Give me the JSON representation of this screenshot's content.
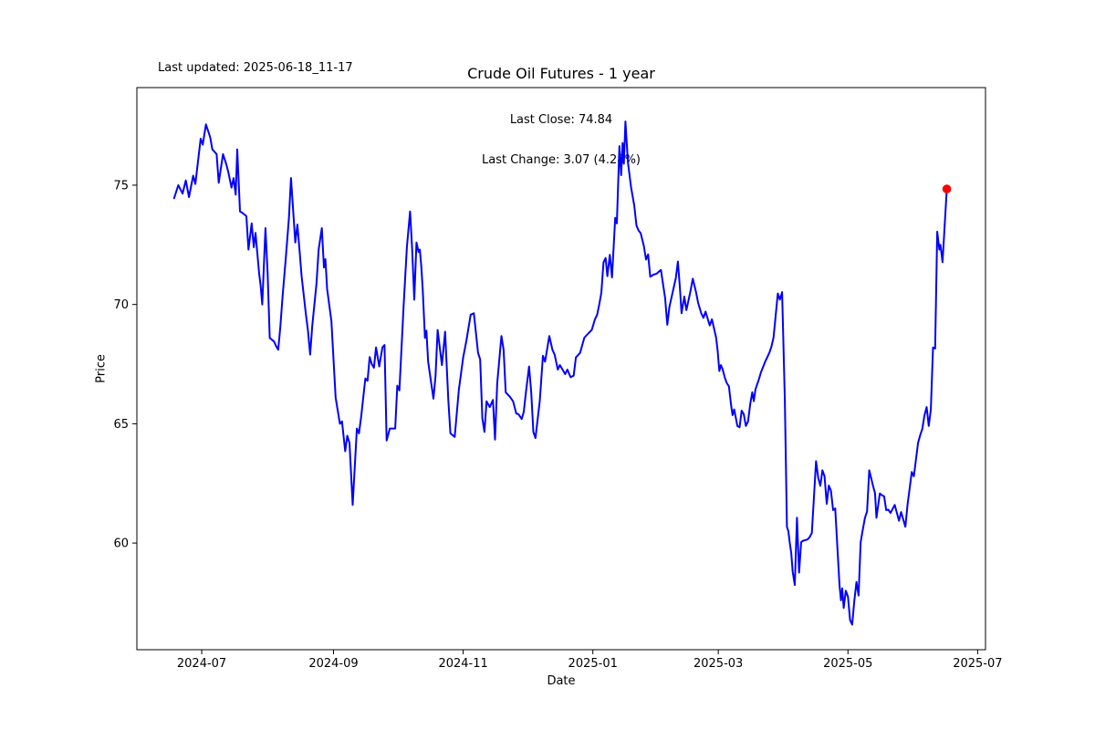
{
  "figure": {
    "title": "Crude Oil Futures - 1 year",
    "last_updated_text": "Last updated: 2025-06-18_11-17",
    "annotation_line1": "Last Close: 74.84",
    "annotation_line2": "Last Change: 3.07 (4.28%)",
    "xlabel": "Date",
    "ylabel": "Price",
    "background_color": "#ffffff"
  },
  "chart_data": {
    "type": "line",
    "title": "Crude Oil Futures - 1 year",
    "xlabel": "Date",
    "ylabel": "Price",
    "legend": null,
    "grid": false,
    "line_color": "#0000ff",
    "line_width": 2,
    "marker": {
      "shape": "circle",
      "color": "#ff0000",
      "on": "last-point"
    },
    "last_close": 74.84,
    "last_change": 3.07,
    "last_change_pct": 4.28,
    "x_axis": {
      "label": "Date",
      "unit": "calendar days since first data point",
      "start_date": "2024-06-18",
      "end_date": "2025-06-17",
      "lim_days": [
        -17.5,
        381.7
      ],
      "ticks": [
        {
          "d": 13,
          "label": "2024-07"
        },
        {
          "d": 75,
          "label": "2024-09"
        },
        {
          "d": 136,
          "label": "2024-11"
        },
        {
          "d": 197,
          "label": "2025-01"
        },
        {
          "d": 256,
          "label": "2025-03"
        },
        {
          "d": 317,
          "label": "2025-05"
        },
        {
          "d": 378,
          "label": "2025-07"
        }
      ]
    },
    "y_axis": {
      "label": "Price",
      "lim": [
        55.53,
        79.09
      ],
      "ticks": [
        {
          "v": 60,
          "label": "60"
        },
        {
          "v": 65,
          "label": "65"
        },
        {
          "v": 70,
          "label": "70"
        },
        {
          "v": 75,
          "label": "75"
        }
      ]
    },
    "points": [
      [
        0,
        74.45
      ],
      [
        2,
        75.0
      ],
      [
        4,
        74.65
      ],
      [
        5.5,
        75.2
      ],
      [
        7,
        74.5
      ],
      [
        9,
        75.4
      ],
      [
        10,
        75.05
      ],
      [
        12.5,
        76.95
      ],
      [
        13.5,
        76.7
      ],
      [
        15,
        77.55
      ],
      [
        17,
        77.0
      ],
      [
        18,
        76.5
      ],
      [
        20,
        76.3
      ],
      [
        21,
        75.1
      ],
      [
        23,
        76.3
      ],
      [
        24.5,
        75.9
      ],
      [
        25.5,
        75.55
      ],
      [
        27,
        74.9
      ],
      [
        28,
        75.3
      ],
      [
        29,
        74.6
      ],
      [
        29.7,
        76.5
      ],
      [
        31,
        73.9
      ],
      [
        32,
        73.85
      ],
      [
        34,
        73.7
      ],
      [
        35,
        72.3
      ],
      [
        36.5,
        73.4
      ],
      [
        37.5,
        72.4
      ],
      [
        38.3,
        73.0
      ],
      [
        40,
        71.3
      ],
      [
        40.7,
        70.8
      ],
      [
        41.5,
        70.0
      ],
      [
        43,
        73.2
      ],
      [
        44,
        71.3
      ],
      [
        45,
        68.6
      ],
      [
        47,
        68.45
      ],
      [
        48,
        68.25
      ],
      [
        49,
        68.1
      ],
      [
        50,
        69.1
      ],
      [
        51,
        70.3
      ],
      [
        52.5,
        71.9
      ],
      [
        54,
        73.6
      ],
      [
        55,
        75.3
      ],
      [
        57,
        72.6
      ],
      [
        58,
        73.35
      ],
      [
        59,
        72.3
      ],
      [
        60,
        71.2
      ],
      [
        62,
        69.6
      ],
      [
        63,
        68.9
      ],
      [
        64,
        67.9
      ],
      [
        65,
        69.1
      ],
      [
        67,
        70.9
      ],
      [
        68,
        72.3
      ],
      [
        69.5,
        73.2
      ],
      [
        70.5,
        71.55
      ],
      [
        71.2,
        71.9
      ],
      [
        72,
        70.65
      ],
      [
        74,
        69.3
      ],
      [
        76,
        66.1
      ],
      [
        78,
        65.0
      ],
      [
        79,
        65.1
      ],
      [
        80.5,
        63.85
      ],
      [
        81.5,
        64.5
      ],
      [
        82.5,
        64.2
      ],
      [
        84,
        61.6
      ],
      [
        86,
        64.8
      ],
      [
        87,
        64.6
      ],
      [
        88,
        65.3
      ],
      [
        90,
        66.9
      ],
      [
        91,
        66.8
      ],
      [
        92,
        67.8
      ],
      [
        93,
        67.5
      ],
      [
        94,
        67.35
      ],
      [
        95,
        68.2
      ],
      [
        96.5,
        67.4
      ],
      [
        98,
        68.2
      ],
      [
        99,
        68.3
      ],
      [
        100,
        64.3
      ],
      [
        101.5,
        64.8
      ],
      [
        104,
        64.8
      ],
      [
        105,
        66.6
      ],
      [
        106,
        66.4
      ],
      [
        108,
        70.0
      ],
      [
        109.5,
        72.4
      ],
      [
        111,
        73.9
      ],
      [
        112,
        72.3
      ],
      [
        113,
        70.2
      ],
      [
        114,
        72.6
      ],
      [
        115,
        72.2
      ],
      [
        115.6,
        72.3
      ],
      [
        116.3,
        71.6
      ],
      [
        117,
        70.6
      ],
      [
        118,
        68.6
      ],
      [
        118.7,
        68.9
      ],
      [
        119.5,
        67.6
      ],
      [
        122,
        66.05
      ],
      [
        123,
        67.0
      ],
      [
        124,
        68.93
      ],
      [
        126,
        67.46
      ],
      [
        127.5,
        68.86
      ],
      [
        129,
        66.0
      ],
      [
        130,
        64.6
      ],
      [
        132,
        64.45
      ],
      [
        134,
        66.44
      ],
      [
        136,
        67.78
      ],
      [
        137.5,
        68.48
      ],
      [
        139.5,
        69.57
      ],
      [
        141,
        69.63
      ],
      [
        143,
        67.97
      ],
      [
        144,
        67.7
      ],
      [
        145,
        65.23
      ],
      [
        146,
        64.66
      ],
      [
        147,
        65.94
      ],
      [
        148.5,
        65.7
      ],
      [
        150,
        66.0
      ],
      [
        151,
        64.34
      ],
      [
        152,
        66.7
      ],
      [
        154,
        68.68
      ],
      [
        155,
        68.1
      ],
      [
        156,
        66.32
      ],
      [
        158,
        66.13
      ],
      [
        159.5,
        65.94
      ],
      [
        161,
        65.43
      ],
      [
        162,
        65.4
      ],
      [
        163.5,
        65.2
      ],
      [
        164.5,
        65.5
      ],
      [
        165.5,
        66.3
      ],
      [
        167,
        67.4
      ],
      [
        168,
        66.3
      ],
      [
        169,
        64.66
      ],
      [
        170,
        64.4
      ],
      [
        172,
        65.94
      ],
      [
        173.5,
        67.85
      ],
      [
        174.5,
        67.6
      ],
      [
        176.5,
        68.68
      ],
      [
        178,
        68.1
      ],
      [
        179,
        67.9
      ],
      [
        180.5,
        67.27
      ],
      [
        181.5,
        67.46
      ],
      [
        184,
        67.08
      ],
      [
        185,
        67.27
      ],
      [
        186.5,
        66.95
      ],
      [
        188,
        67.02
      ],
      [
        189,
        67.78
      ],
      [
        191,
        67.97
      ],
      [
        193,
        68.61
      ],
      [
        195,
        68.8
      ],
      [
        196.5,
        68.93
      ],
      [
        198,
        69.38
      ],
      [
        199,
        69.57
      ],
      [
        200,
        70.0
      ],
      [
        201,
        70.49
      ],
      [
        202,
        71.77
      ],
      [
        203,
        71.95
      ],
      [
        203.8,
        71.19
      ],
      [
        205,
        72.08
      ],
      [
        206,
        71.13
      ],
      [
        207.5,
        73.63
      ],
      [
        208.3,
        73.4
      ],
      [
        209.5,
        76.64
      ],
      [
        210.3,
        75.42
      ],
      [
        211,
        76.77
      ],
      [
        211.6,
        75.9
      ],
      [
        212.3,
        77.67
      ],
      [
        213.5,
        75.94
      ],
      [
        215,
        74.91
      ],
      [
        216.5,
        74.14
      ],
      [
        217.5,
        73.31
      ],
      [
        218.5,
        73.1
      ],
      [
        219.5,
        72.99
      ],
      [
        221,
        72.45
      ],
      [
        222,
        71.88
      ],
      [
        223,
        72.1
      ],
      [
        224,
        71.16
      ],
      [
        225.5,
        71.25
      ],
      [
        227,
        71.29
      ],
      [
        229,
        71.45
      ],
      [
        231,
        70.27
      ],
      [
        232,
        69.15
      ],
      [
        233,
        69.9
      ],
      [
        236,
        71.1
      ],
      [
        237,
        71.8
      ],
      [
        238,
        70.65
      ],
      [
        238.7,
        69.63
      ],
      [
        240,
        70.33
      ],
      [
        241,
        69.76
      ],
      [
        243,
        70.6
      ],
      [
        244,
        71.08
      ],
      [
        245.5,
        70.53
      ],
      [
        246.5,
        70.08
      ],
      [
        248,
        69.63
      ],
      [
        249,
        69.44
      ],
      [
        250,
        69.7
      ],
      [
        252,
        69.12
      ],
      [
        253,
        69.38
      ],
      [
        255,
        68.61
      ],
      [
        255.7,
        68.04
      ],
      [
        256.5,
        67.21
      ],
      [
        257.2,
        67.46
      ],
      [
        258,
        67.3
      ],
      [
        259,
        66.95
      ],
      [
        260,
        66.7
      ],
      [
        261,
        66.57
      ],
      [
        262,
        65.81
      ],
      [
        262.7,
        65.36
      ],
      [
        263.5,
        65.6
      ],
      [
        265,
        64.91
      ],
      [
        266,
        64.85
      ],
      [
        267,
        65.55
      ],
      [
        268,
        65.4
      ],
      [
        269,
        64.91
      ],
      [
        270,
        65.1
      ],
      [
        271,
        65.81
      ],
      [
        272,
        66.32
      ],
      [
        272.7,
        65.95
      ],
      [
        273.5,
        66.44
      ],
      [
        275,
        66.83
      ],
      [
        276,
        67.14
      ],
      [
        278,
        67.59
      ],
      [
        280,
        67.97
      ],
      [
        281,
        68.23
      ],
      [
        282,
        68.61
      ],
      [
        284,
        70.46
      ],
      [
        285,
        70.2
      ],
      [
        286,
        70.52
      ],
      [
        287.3,
        66.0
      ],
      [
        288.3,
        60.68
      ],
      [
        289,
        60.49
      ],
      [
        289.6,
        60.04
      ],
      [
        290.3,
        59.59
      ],
      [
        291,
        58.8
      ],
      [
        292,
        58.24
      ],
      [
        293,
        61.06
      ],
      [
        294,
        58.76
      ],
      [
        295,
        60.04
      ],
      [
        296,
        60.1
      ],
      [
        298,
        60.15
      ],
      [
        299,
        60.25
      ],
      [
        300,
        60.42
      ],
      [
        302,
        63.43
      ],
      [
        303,
        62.73
      ],
      [
        304,
        62.4
      ],
      [
        305,
        63.05
      ],
      [
        306,
        62.8
      ],
      [
        307,
        61.64
      ],
      [
        308,
        62.41
      ],
      [
        309,
        62.2
      ],
      [
        310,
        61.38
      ],
      [
        311,
        61.45
      ],
      [
        313,
        58.24
      ],
      [
        313.7,
        57.6
      ],
      [
        314.3,
        58.1
      ],
      [
        315,
        57.28
      ],
      [
        316,
        58.0
      ],
      [
        317,
        57.75
      ],
      [
        318,
        56.77
      ],
      [
        319,
        56.58
      ],
      [
        320,
        57.6
      ],
      [
        321,
        58.37
      ],
      [
        322,
        57.8
      ],
      [
        323,
        60.04
      ],
      [
        323.7,
        60.42
      ],
      [
        325,
        61.06
      ],
      [
        326,
        61.32
      ],
      [
        327,
        63.05
      ],
      [
        329,
        62.33
      ],
      [
        329.7,
        62.1
      ],
      [
        330.4,
        61.06
      ],
      [
        332,
        62.08
      ],
      [
        333,
        62.0
      ],
      [
        334,
        61.96
      ],
      [
        335,
        61.38
      ],
      [
        336,
        61.4
      ],
      [
        337,
        61.26
      ],
      [
        339,
        61.6
      ],
      [
        341,
        60.94
      ],
      [
        342,
        61.3
      ],
      [
        344,
        60.68
      ],
      [
        345,
        61.58
      ],
      [
        347,
        62.98
      ],
      [
        348,
        62.8
      ],
      [
        350,
        64.2
      ],
      [
        351,
        64.53
      ],
      [
        352,
        64.79
      ],
      [
        353,
        65.35
      ],
      [
        354,
        65.7
      ],
      [
        355,
        64.91
      ],
      [
        356,
        65.6
      ],
      [
        357,
        68.2
      ],
      [
        358,
        68.15
      ],
      [
        359,
        73.05
      ],
      [
        360,
        72.3
      ],
      [
        360.5,
        72.5
      ],
      [
        361.5,
        71.77
      ],
      [
        363.5,
        74.84
      ]
    ]
  }
}
